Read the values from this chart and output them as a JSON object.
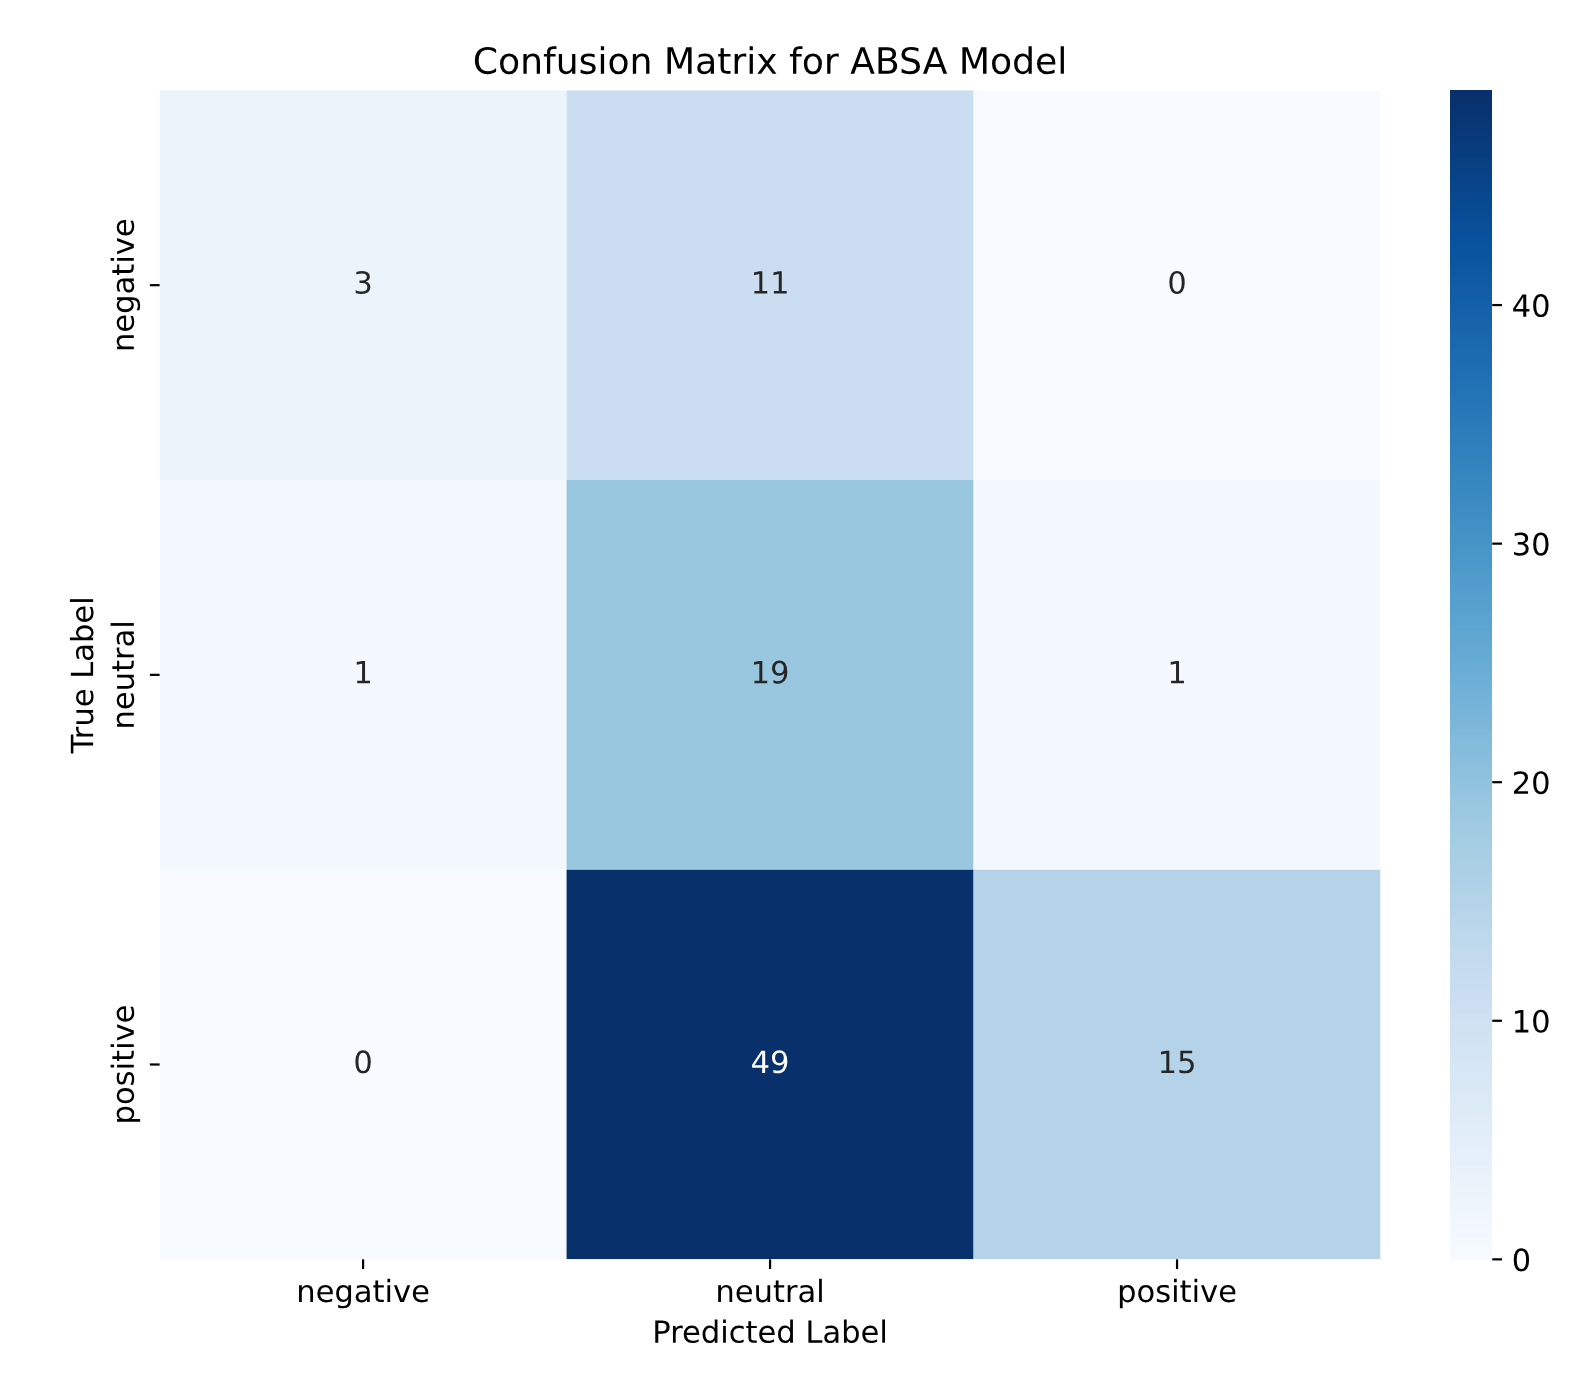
{
  "chart_data": {
    "type": "heatmap",
    "title": "Confusion Matrix for ABSA Model",
    "xlabel": "Predicted Label",
    "ylabel": "True Label",
    "categories": [
      "negative",
      "neutral",
      "positive"
    ],
    "y_categories": [
      "negative",
      "neutral",
      "positive"
    ],
    "cells": [
      [
        3,
        11,
        0
      ],
      [
        1,
        19,
        1
      ],
      [
        0,
        49,
        15
      ]
    ],
    "clim": [
      0,
      49
    ],
    "cticks": [
      0,
      10,
      20,
      30,
      40
    ],
    "data_labels": true
  }
}
